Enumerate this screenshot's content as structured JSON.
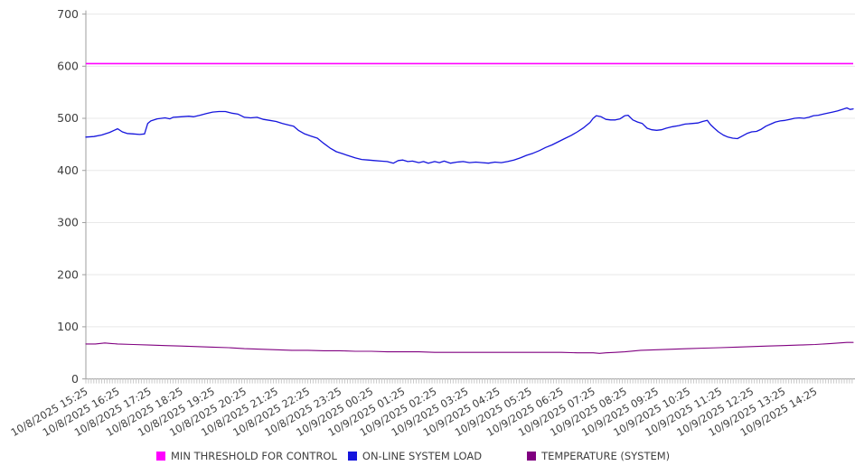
{
  "chart_data": {
    "type": "line",
    "title": "",
    "grid": "horizontal",
    "legend_position": "bottom",
    "colors": {
      "grid_line": "#e8e8e8",
      "axis_line": "#9e9e9e",
      "minor_tick": "#c9c9c9",
      "tick_label": "#3f3f3f"
    },
    "y_axis": {
      "min": 0,
      "max": 700,
      "step": 100,
      "ticks": [
        0,
        100,
        200,
        300,
        400,
        500,
        600,
        700
      ]
    },
    "x_axis": {
      "span_hours": 24.2,
      "minor_tick_interval_min": 5,
      "label_rotation_deg": -30,
      "labels": [
        "10/8/2025 15:25",
        "10/8/2025 16:25",
        "10/8/2025 17:25",
        "10/8/2025 18:25",
        "10/8/2025 19:25",
        "10/8/2025 20:25",
        "10/8/2025 21:25",
        "10/8/2025 22:25",
        "10/8/2025 23:25",
        "10/9/2025 00:25",
        "10/9/2025 01:25",
        "10/9/2025 02:25",
        "10/9/2025 03:25",
        "10/9/2025 04:25",
        "10/9/2025 05:25",
        "10/9/2025 06:25",
        "10/9/2025 07:25",
        "10/9/2025 08:25",
        "10/9/2025 09:25",
        "10/9/2025 10:25",
        "10/9/2025 11:25",
        "10/9/2025 12:25",
        "10/9/2025 13:25",
        "10/9/2025 14:25"
      ]
    },
    "series": [
      {
        "name": "MIN THRESHOLD FOR CONTROL",
        "color": "#FF00FF",
        "kind": "constant",
        "value": 605,
        "line_width": 1.6
      },
      {
        "name": "ON-LINE SYSTEM LOAD",
        "color": "#1515DD",
        "kind": "line",
        "line_width": 1.3,
        "x_hours": [
          0,
          0.25,
          0.5,
          0.75,
          1.0,
          1.15,
          1.3,
          1.5,
          1.7,
          1.85,
          1.95,
          2.05,
          2.25,
          2.5,
          2.65,
          2.75,
          3.0,
          3.25,
          3.4,
          3.6,
          3.8,
          4.0,
          4.2,
          4.4,
          4.6,
          4.8,
          5.0,
          5.2,
          5.4,
          5.6,
          5.8,
          6.0,
          6.2,
          6.4,
          6.55,
          6.7,
          6.9,
          7.1,
          7.3,
          7.5,
          7.7,
          7.9,
          8.1,
          8.3,
          8.5,
          8.7,
          8.9,
          9.1,
          9.3,
          9.5,
          9.7,
          9.85,
          10.0,
          10.15,
          10.3,
          10.5,
          10.65,
          10.8,
          11.0,
          11.15,
          11.3,
          11.5,
          11.7,
          11.9,
          12.1,
          12.3,
          12.5,
          12.7,
          12.9,
          13.1,
          13.3,
          13.5,
          13.7,
          13.9,
          14.1,
          14.3,
          14.5,
          14.7,
          14.9,
          15.1,
          15.3,
          15.5,
          15.7,
          15.9,
          16.0,
          16.1,
          16.25,
          16.4,
          16.55,
          16.7,
          16.85,
          17.0,
          17.1,
          17.25,
          17.4,
          17.55,
          17.7,
          17.85,
          18.0,
          18.15,
          18.3,
          18.5,
          18.7,
          18.9,
          19.1,
          19.3,
          19.45,
          19.6,
          19.7,
          19.8,
          19.95,
          20.1,
          20.25,
          20.4,
          20.55,
          20.7,
          20.85,
          21.0,
          21.15,
          21.3,
          21.45,
          21.6,
          21.75,
          21.9,
          22.05,
          22.2,
          22.35,
          22.5,
          22.65,
          22.8,
          22.95,
          23.1,
          23.25,
          23.4,
          23.55,
          23.7,
          23.85,
          24.0,
          24.1,
          24.2
        ],
        "values": [
          464,
          465,
          468,
          473,
          480,
          474,
          471,
          470,
          469,
          470,
          490,
          495,
          499,
          501,
          499,
          502,
          503,
          504,
          503,
          506,
          509,
          512,
          513,
          513,
          510,
          508,
          502,
          501,
          502,
          498,
          496,
          494,
          490,
          487,
          485,
          477,
          470,
          466,
          462,
          452,
          443,
          436,
          432,
          428,
          424,
          421,
          420,
          419,
          418,
          417,
          414,
          419,
          420,
          417,
          418,
          415,
          417,
          414,
          417,
          415,
          418,
          414,
          416,
          417,
          415,
          416,
          415,
          414,
          416,
          415,
          417,
          420,
          424,
          429,
          433,
          438,
          444,
          449,
          455,
          461,
          467,
          474,
          482,
          492,
          500,
          505,
          503,
          498,
          497,
          497,
          499,
          505,
          506,
          497,
          493,
          490,
          481,
          478,
          477,
          478,
          481,
          484,
          486,
          489,
          490,
          491,
          494,
          496,
          488,
          482,
          474,
          468,
          464,
          462,
          461,
          466,
          471,
          474,
          475,
          479,
          485,
          489,
          493,
          495,
          496,
          498,
          500,
          501,
          500,
          502,
          505,
          506,
          508,
          510,
          512,
          514,
          517,
          520,
          517,
          518
        ]
      },
      {
        "name": "TEMPERATURE (SYSTEM)",
        "color": "#800080",
        "kind": "line",
        "line_width": 1.1,
        "x_hours": [
          0,
          0.3,
          0.6,
          0.8,
          1.0,
          1.5,
          2.0,
          2.5,
          3.0,
          3.5,
          4.0,
          4.5,
          5.0,
          5.5,
          6.0,
          6.5,
          7.0,
          7.5,
          8.0,
          8.5,
          9.0,
          9.5,
          10.0,
          10.5,
          11.0,
          11.5,
          12.0,
          12.5,
          13.0,
          13.5,
          14.0,
          14.5,
          15.0,
          15.5,
          16.0,
          16.2,
          16.4,
          16.7,
          17.0,
          17.5,
          18.0,
          18.5,
          19.0,
          19.5,
          20.0,
          20.5,
          21.0,
          21.5,
          22.0,
          22.5,
          23.0,
          23.5,
          24.0,
          24.2
        ],
        "values": [
          67,
          67,
          69,
          68,
          67,
          66,
          65,
          64,
          63,
          62,
          61,
          60,
          58,
          57,
          56,
          55,
          55,
          54,
          54,
          53,
          53,
          52,
          52,
          52,
          51,
          51,
          51,
          51,
          51,
          51,
          51,
          51,
          51,
          50,
          50,
          49,
          50,
          51,
          52,
          55,
          56,
          57,
          58,
          59,
          60,
          61,
          62,
          63,
          64,
          65,
          66,
          68,
          70,
          70
        ]
      }
    ]
  },
  "legend": {
    "items": [
      {
        "label": "MIN THRESHOLD FOR CONTROL",
        "color": "#FF00FF"
      },
      {
        "label": "ON-LINE SYSTEM LOAD",
        "color": "#1515DD"
      },
      {
        "label": "TEMPERATURE (SYSTEM)",
        "color": "#800080"
      }
    ]
  }
}
